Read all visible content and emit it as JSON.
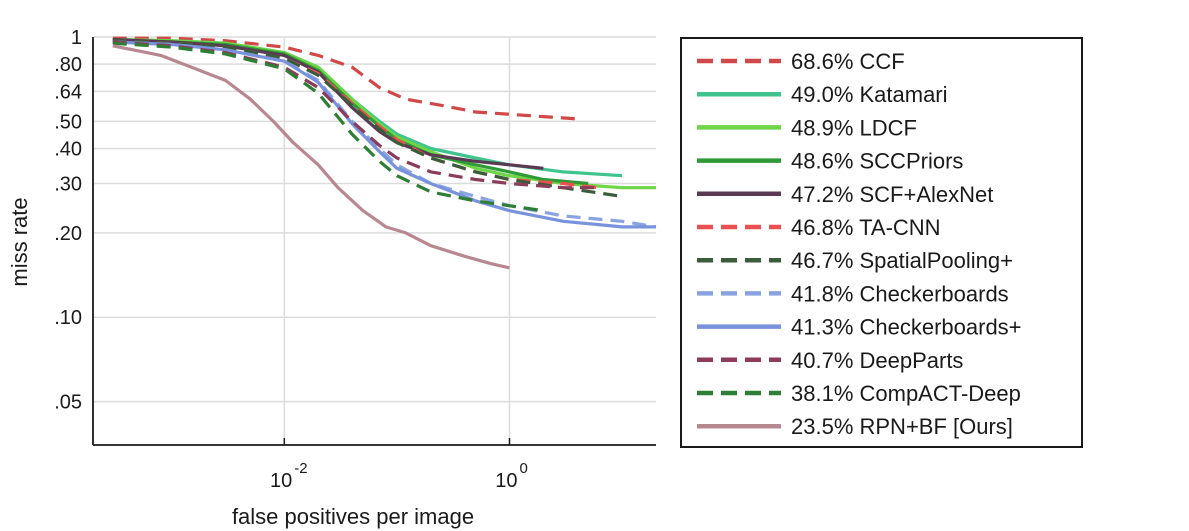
{
  "chart_data": {
    "type": "line",
    "title": "",
    "xlabel": "false positives per image",
    "ylabel": "miss rate",
    "x_scale": "log",
    "y_scale": "log",
    "xlim": [
      0.0002,
      20
    ],
    "ylim": [
      0.035,
      1.0
    ],
    "grid": true,
    "legend_position": "right-outside",
    "x_ticks": [
      {
        "value": 0.01,
        "base": "10",
        "exp": "-2"
      },
      {
        "value": 1,
        "base": "10",
        "exp": "0"
      }
    ],
    "y_ticks": [
      {
        "value": 1.0,
        "label": "1"
      },
      {
        "value": 0.8,
        "label": ".80"
      },
      {
        "value": 0.64,
        "label": ".64"
      },
      {
        "value": 0.5,
        "label": ".50"
      },
      {
        "value": 0.4,
        "label": ".40"
      },
      {
        "value": 0.3,
        "label": ".30"
      },
      {
        "value": 0.2,
        "label": ".20"
      },
      {
        "value": 0.1,
        "label": ".10"
      },
      {
        "value": 0.05,
        "label": ".05"
      }
    ],
    "series": [
      {
        "name": "68.6% CCF",
        "color": "#d04848",
        "dash": true,
        "points": [
          [
            0.0003,
            0.99
          ],
          [
            0.001,
            0.99
          ],
          [
            0.003,
            0.97
          ],
          [
            0.01,
            0.92
          ],
          [
            0.02,
            0.86
          ],
          [
            0.04,
            0.78
          ],
          [
            0.07,
            0.66
          ],
          [
            0.12,
            0.6
          ],
          [
            0.25,
            0.57
          ],
          [
            0.5,
            0.54
          ],
          [
            1,
            0.53
          ],
          [
            2,
            0.52
          ],
          [
            4,
            0.51
          ]
        ]
      },
      {
        "name": "49.0% Katamari",
        "color": "#3ec48c",
        "dash": false,
        "points": [
          [
            0.0003,
            0.98
          ],
          [
            0.001,
            0.97
          ],
          [
            0.003,
            0.95
          ],
          [
            0.01,
            0.88
          ],
          [
            0.02,
            0.78
          ],
          [
            0.04,
            0.6
          ],
          [
            0.07,
            0.5
          ],
          [
            0.1,
            0.45
          ],
          [
            0.2,
            0.4
          ],
          [
            0.5,
            0.37
          ],
          [
            1,
            0.35
          ],
          [
            3,
            0.33
          ],
          [
            10,
            0.32
          ]
        ]
      },
      {
        "name": "48.9% LDCF",
        "color": "#6ed646",
        "dash": false,
        "points": [
          [
            0.0003,
            0.98
          ],
          [
            0.001,
            0.97
          ],
          [
            0.003,
            0.95
          ],
          [
            0.01,
            0.88
          ],
          [
            0.02,
            0.78
          ],
          [
            0.04,
            0.6
          ],
          [
            0.07,
            0.49
          ],
          [
            0.1,
            0.44
          ],
          [
            0.2,
            0.39
          ],
          [
            0.5,
            0.34
          ],
          [
            1,
            0.32
          ],
          [
            3,
            0.3
          ],
          [
            10,
            0.29
          ],
          [
            20,
            0.29
          ]
        ]
      },
      {
        "name": "48.6% SCCPriors",
        "color": "#2f9a38",
        "dash": false,
        "points": [
          [
            0.0003,
            0.97
          ],
          [
            0.001,
            0.96
          ],
          [
            0.003,
            0.94
          ],
          [
            0.01,
            0.87
          ],
          [
            0.02,
            0.76
          ],
          [
            0.04,
            0.58
          ],
          [
            0.07,
            0.48
          ],
          [
            0.1,
            0.43
          ],
          [
            0.2,
            0.38
          ],
          [
            0.5,
            0.35
          ],
          [
            1,
            0.33
          ],
          [
            2,
            0.31
          ],
          [
            5,
            0.3
          ]
        ]
      },
      {
        "name": "47.2% SCF+AlexNet",
        "color": "#5a3a52",
        "dash": false,
        "points": [
          [
            0.0003,
            0.98
          ],
          [
            0.001,
            0.96
          ],
          [
            0.003,
            0.93
          ],
          [
            0.01,
            0.86
          ],
          [
            0.02,
            0.75
          ],
          [
            0.04,
            0.56
          ],
          [
            0.07,
            0.46
          ],
          [
            0.1,
            0.42
          ],
          [
            0.2,
            0.38
          ],
          [
            0.5,
            0.36
          ],
          [
            1,
            0.35
          ],
          [
            2,
            0.34
          ]
        ]
      },
      {
        "name": "46.8% TA-CNN",
        "color": "#ea5050",
        "dash": true,
        "points": [
          [
            0.0003,
            0.97
          ],
          [
            0.001,
            0.95
          ],
          [
            0.003,
            0.92
          ],
          [
            0.01,
            0.84
          ],
          [
            0.02,
            0.74
          ],
          [
            0.04,
            0.58
          ],
          [
            0.07,
            0.48
          ],
          [
            0.1,
            0.43
          ],
          [
            0.2,
            0.37
          ],
          [
            0.5,
            0.33
          ],
          [
            1,
            0.31
          ],
          [
            3,
            0.3
          ],
          [
            6,
            0.29
          ]
        ]
      },
      {
        "name": "46.7% SpatialPooling+",
        "color": "#3a5c3a",
        "dash": true,
        "points": [
          [
            0.0003,
            0.97
          ],
          [
            0.001,
            0.95
          ],
          [
            0.003,
            0.92
          ],
          [
            0.01,
            0.84
          ],
          [
            0.02,
            0.73
          ],
          [
            0.04,
            0.57
          ],
          [
            0.07,
            0.47
          ],
          [
            0.1,
            0.42
          ],
          [
            0.2,
            0.37
          ],
          [
            0.5,
            0.33
          ],
          [
            1,
            0.31
          ],
          [
            3,
            0.29
          ],
          [
            10,
            0.27
          ]
        ]
      },
      {
        "name": "41.8% Checkerboards",
        "color": "#8aa4e0",
        "dash": true,
        "points": [
          [
            0.0003,
            0.96
          ],
          [
            0.001,
            0.94
          ],
          [
            0.003,
            0.9
          ],
          [
            0.01,
            0.82
          ],
          [
            0.02,
            0.7
          ],
          [
            0.04,
            0.5
          ],
          [
            0.07,
            0.4
          ],
          [
            0.1,
            0.35
          ],
          [
            0.2,
            0.3
          ],
          [
            0.5,
            0.27
          ],
          [
            1,
            0.25
          ],
          [
            3,
            0.23
          ],
          [
            10,
            0.22
          ],
          [
            20,
            0.21
          ]
        ]
      },
      {
        "name": "41.3% Checkerboards+",
        "color": "#7892dc",
        "dash": false,
        "points": [
          [
            0.0003,
            0.96
          ],
          [
            0.001,
            0.94
          ],
          [
            0.003,
            0.9
          ],
          [
            0.01,
            0.82
          ],
          [
            0.02,
            0.69
          ],
          [
            0.04,
            0.49
          ],
          [
            0.07,
            0.39
          ],
          [
            0.1,
            0.34
          ],
          [
            0.2,
            0.3
          ],
          [
            0.5,
            0.26
          ],
          [
            1,
            0.24
          ],
          [
            3,
            0.22
          ],
          [
            10,
            0.21
          ],
          [
            20,
            0.21
          ]
        ]
      },
      {
        "name": "40.7% DeepParts",
        "color": "#8a3c5a",
        "dash": true,
        "points": [
          [
            0.0003,
            0.96
          ],
          [
            0.001,
            0.93
          ],
          [
            0.003,
            0.88
          ],
          [
            0.01,
            0.78
          ],
          [
            0.02,
            0.66
          ],
          [
            0.04,
            0.5
          ],
          [
            0.07,
            0.41
          ],
          [
            0.1,
            0.37
          ],
          [
            0.2,
            0.33
          ],
          [
            0.5,
            0.31
          ],
          [
            1,
            0.3
          ],
          [
            3,
            0.29
          ],
          [
            6,
            0.29
          ]
        ]
      },
      {
        "name": "38.1% CompACT-Deep",
        "color": "#2e7e36",
        "dash": true,
        "points": [
          [
            0.0003,
            0.95
          ],
          [
            0.001,
            0.92
          ],
          [
            0.003,
            0.87
          ],
          [
            0.01,
            0.77
          ],
          [
            0.02,
            0.63
          ],
          [
            0.04,
            0.45
          ],
          [
            0.07,
            0.36
          ],
          [
            0.1,
            0.32
          ],
          [
            0.2,
            0.28
          ],
          [
            0.5,
            0.26
          ],
          [
            1,
            0.25
          ],
          [
            2,
            0.24
          ]
        ]
      },
      {
        "name": "23.5% RPN+BF [Ours]",
        "color": "#b88890",
        "dash": false,
        "points": [
          [
            0.0003,
            0.93
          ],
          [
            0.0008,
            0.86
          ],
          [
            0.0015,
            0.78
          ],
          [
            0.003,
            0.7
          ],
          [
            0.005,
            0.6
          ],
          [
            0.008,
            0.5
          ],
          [
            0.012,
            0.42
          ],
          [
            0.02,
            0.35
          ],
          [
            0.03,
            0.29
          ],
          [
            0.05,
            0.24
          ],
          [
            0.08,
            0.21
          ],
          [
            0.12,
            0.2
          ],
          [
            0.2,
            0.18
          ],
          [
            0.4,
            0.165
          ],
          [
            0.7,
            0.155
          ],
          [
            1,
            0.15
          ]
        ]
      }
    ]
  }
}
